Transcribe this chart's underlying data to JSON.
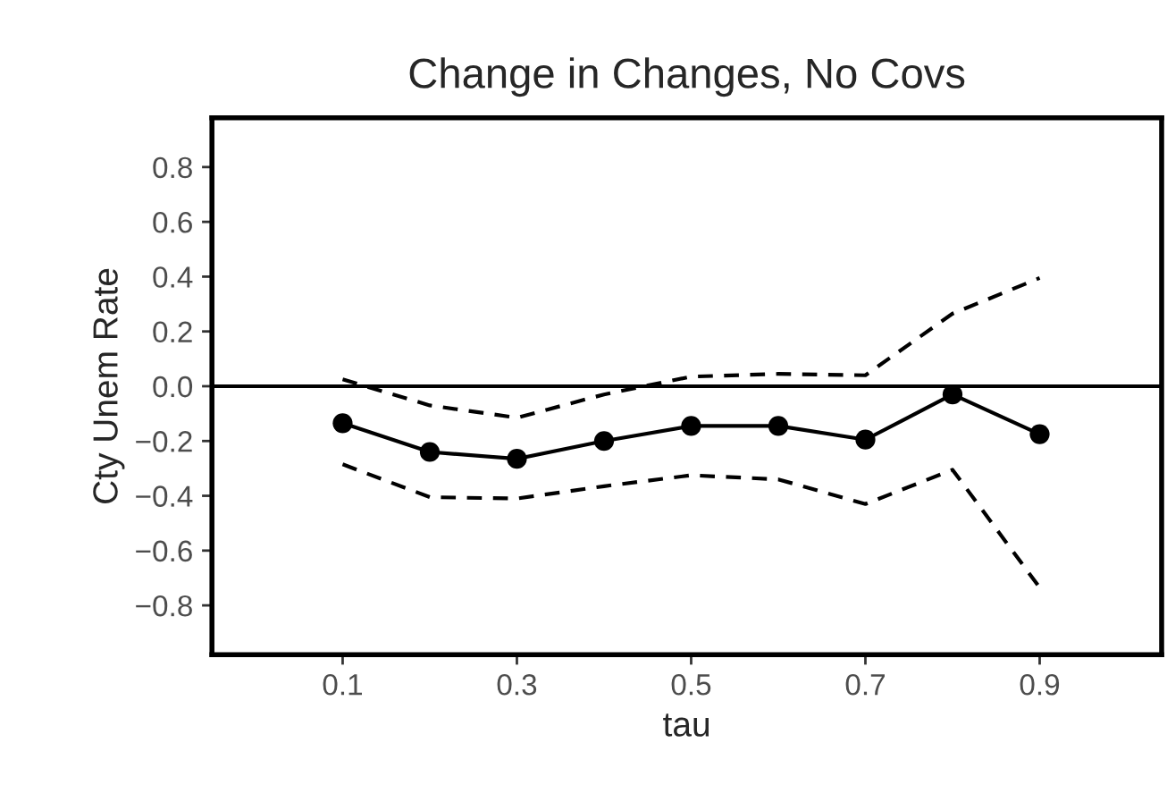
{
  "chart_data": {
    "type": "line",
    "title": "Change in Changes, No Covs",
    "xlabel": "tau",
    "ylabel": "Cty Unem Rate",
    "x": [
      0.1,
      0.2,
      0.3,
      0.4,
      0.5,
      0.6,
      0.7,
      0.8,
      0.9
    ],
    "series": [
      {
        "color": "#000000",
        "marker": "circle",
        "line_style": "solid",
        "values": [
          -0.135,
          -0.24,
          -0.265,
          -0.2,
          -0.145,
          -0.145,
          -0.195,
          -0.03,
          -0.175
        ]
      },
      {
        "color": "#000000",
        "marker": "none",
        "line_style": "dashed",
        "values": [
          0.025,
          -0.07,
          -0.115,
          -0.03,
          0.035,
          0.045,
          0.04,
          0.265,
          0.395
        ]
      },
      {
        "color": "#000000",
        "marker": "none",
        "line_style": "dashed",
        "values": [
          -0.285,
          -0.405,
          -0.41,
          -0.365,
          -0.325,
          -0.34,
          -0.43,
          -0.305,
          -0.735
        ]
      }
    ],
    "xlim": [
      -0.05,
      1.04
    ],
    "xticks": [
      0.1,
      0.3,
      0.5,
      0.7,
      0.9
    ],
    "ylim": [
      -0.98,
      0.98
    ],
    "yticks": [
      {
        "value": -0.8,
        "label": "−0.8"
      },
      {
        "value": -0.6,
        "label": "−0.6"
      },
      {
        "value": -0.4,
        "label": "−0.4"
      },
      {
        "value": -0.2,
        "label": "−0.2"
      },
      {
        "value": 0,
        "label": "0.0"
      },
      {
        "value": 0.2,
        "label": "0.2"
      },
      {
        "value": 0.4,
        "label": "0.4"
      },
      {
        "value": 0.6,
        "label": "0.6"
      },
      {
        "value": 0.8,
        "label": "0.8"
      }
    ],
    "ref_lines": [
      {
        "axis": "y",
        "value": 0,
        "color": "#000000",
        "line_style": "solid"
      }
    ],
    "grid": false,
    "legend": false
  }
}
